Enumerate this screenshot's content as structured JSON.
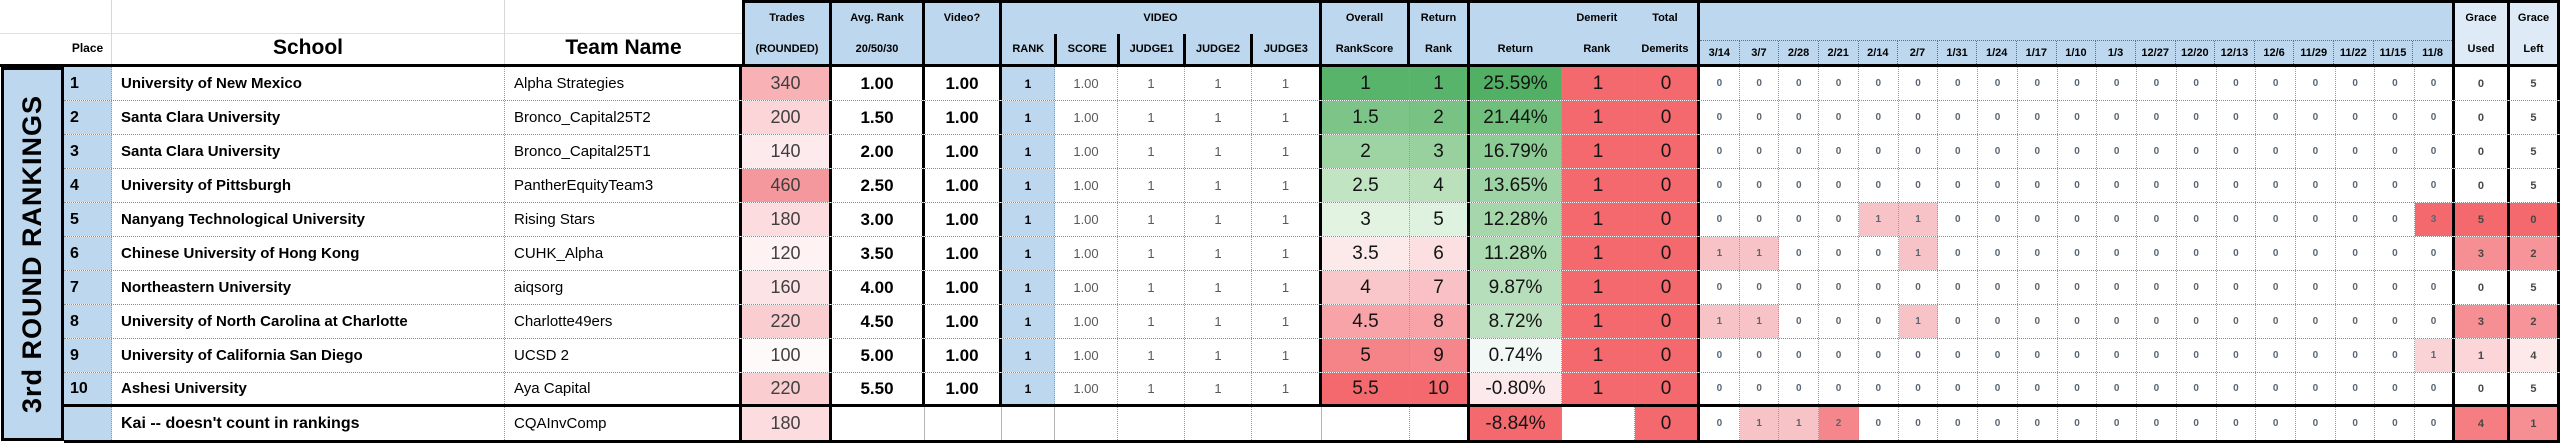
{
  "banner": {
    "title": "3rd ROUND RANKINGS"
  },
  "colors": {
    "header_blue": "#BDD7EE",
    "grace_header_blue": "#DEEBF7",
    "rank_cell_blue": "#BDD7EE",
    "scale_green": "#59B46B",
    "scale_red": "#F4696D",
    "highlight_pink": "#F8C3C7"
  },
  "header": {
    "place": "Place",
    "school": "School",
    "team_name": "Team Name",
    "trades_top": "Trades",
    "trades_bottom": "(ROUNDED)",
    "avg_rank_top": "Avg. Rank",
    "avg_rank_bottom": "20/50/30",
    "video_q": "Video?",
    "video_group": "VIDEO",
    "video_cols": [
      "RANK",
      "SCORE",
      "JUDGE1",
      "JUDGE2",
      "JUDGE3"
    ],
    "overall_top": "Overall",
    "overall_bottom": "RankScore",
    "return_rank_top": "Return",
    "return_rank_bottom": "Rank",
    "return_label": "Return",
    "demerit_top": "Demerit",
    "demerit_bottom": "Rank",
    "total_top": "Total",
    "total_bottom": "Demerits",
    "dates": [
      "3/14",
      "3/7",
      "2/28",
      "2/21",
      "2/14",
      "2/7",
      "1/31",
      "1/24",
      "1/17",
      "1/10",
      "1/3",
      "12/27",
      "12/20",
      "12/13",
      "12/6",
      "11/29",
      "11/22",
      "11/15",
      "11/8"
    ],
    "grace_used_top": "Grace",
    "grace_used_bottom": "Used",
    "grace_left_top": "Grace",
    "grace_left_bottom": "Left"
  },
  "rows": [
    {
      "place": "1",
      "school": "University of New Mexico",
      "team": "Alpha Strategies",
      "trades": "340",
      "trades_bg": "#F8B1B5",
      "avg_rank": "1.00",
      "video": "1.00",
      "rank": "1",
      "rank_bg": "#BDD7EE",
      "score": "1.00",
      "j1": "1",
      "j2": "1",
      "j3": "1",
      "rankscore": "1",
      "rankscore_bg": "#59B46B",
      "return_rank": "1",
      "return_rank_bg": "#59B46B",
      "ret": "25.59%",
      "ret_bg": "#52B065",
      "demerit_rank": "1",
      "demerit_rank_bg": "#F4696D",
      "total_demerits": "0",
      "total_demerits_bg": "#F4696D",
      "dates": [
        "0",
        "0",
        "0",
        "0",
        "0",
        "0",
        "0",
        "0",
        "0",
        "0",
        "0",
        "0",
        "0",
        "0",
        "0",
        "0",
        "0",
        "0",
        "0"
      ],
      "date_bgs": {},
      "grace_used": "0",
      "grace_used_bg": "",
      "grace_left": "5",
      "grace_left_bg": ""
    },
    {
      "place": "2",
      "school": "Santa Clara University",
      "team": "Bronco_Capital25T2",
      "trades": "200",
      "trades_bg": "#FBD5D8",
      "avg_rank": "1.50",
      "video": "1.00",
      "rank": "1",
      "rank_bg": "#BDD7EE",
      "score": "1.00",
      "j1": "1",
      "j2": "1",
      "j3": "1",
      "rankscore": "1.5",
      "rankscore_bg": "#7CC487",
      "return_rank": "2",
      "return_rank_bg": "#78C283",
      "ret": "21.44%",
      "ret_bg": "#70BF7D",
      "demerit_rank": "1",
      "demerit_rank_bg": "#F4696D",
      "total_demerits": "0",
      "total_demerits_bg": "#F4696D",
      "dates": [
        "0",
        "0",
        "0",
        "0",
        "0",
        "0",
        "0",
        "0",
        "0",
        "0",
        "0",
        "0",
        "0",
        "0",
        "0",
        "0",
        "0",
        "0",
        "0"
      ],
      "date_bgs": {},
      "grace_used": "0",
      "grace_used_bg": "",
      "grace_left": "5",
      "grace_left_bg": ""
    },
    {
      "place": "3",
      "school": "Santa Clara University",
      "team": "Bronco_Capital25T1",
      "trades": "140",
      "trades_bg": "#FDEAEC",
      "avg_rank": "2.00",
      "video": "1.00",
      "rank": "1",
      "rank_bg": "#BDD7EE",
      "score": "1.00",
      "j1": "1",
      "j2": "1",
      "j3": "1",
      "rankscore": "2",
      "rankscore_bg": "#9ED4A3",
      "return_rank": "3",
      "return_rank_bg": "#98D09E",
      "ret": "16.79%",
      "ret_bg": "#8ECC96",
      "demerit_rank": "1",
      "demerit_rank_bg": "#F4696D",
      "total_demerits": "0",
      "total_demerits_bg": "#F4696D",
      "dates": [
        "0",
        "0",
        "0",
        "0",
        "0",
        "0",
        "0",
        "0",
        "0",
        "0",
        "0",
        "0",
        "0",
        "0",
        "0",
        "0",
        "0",
        "0",
        "0"
      ],
      "date_bgs": {},
      "grace_used": "0",
      "grace_used_bg": "",
      "grace_left": "5",
      "grace_left_bg": ""
    },
    {
      "place": "4",
      "school": "University of Pittsburgh",
      "team": "PantherEquityTeam3",
      "trades": "460",
      "trades_bg": "#F5989D",
      "avg_rank": "2.50",
      "video": "1.00",
      "rank": "1",
      "rank_bg": "#BDD7EE",
      "score": "1.00",
      "j1": "1",
      "j2": "1",
      "j3": "1",
      "rankscore": "2.5",
      "rankscore_bg": "#C1E4C2",
      "return_rank": "4",
      "return_rank_bg": "#BBE0BC",
      "ret": "13.65%",
      "ret_bg": "#9ED4A5",
      "demerit_rank": "1",
      "demerit_rank_bg": "#F4696D",
      "total_demerits": "0",
      "total_demerits_bg": "#F4696D",
      "dates": [
        "0",
        "0",
        "0",
        "0",
        "0",
        "0",
        "0",
        "0",
        "0",
        "0",
        "0",
        "0",
        "0",
        "0",
        "0",
        "0",
        "0",
        "0",
        "0"
      ],
      "date_bgs": {},
      "grace_used": "0",
      "grace_used_bg": "",
      "grace_left": "5",
      "grace_left_bg": ""
    },
    {
      "place": "5",
      "school": "Nanyang Technological University",
      "team": "Rising Stars",
      "trades": "180",
      "trades_bg": "#FCDCDF",
      "avg_rank": "3.00",
      "video": "1.00",
      "rank": "1",
      "rank_bg": "#BDD7EE",
      "score": "1.00",
      "j1": "1",
      "j2": "1",
      "j3": "1",
      "rankscore": "3",
      "rankscore_bg": "#E3F3E2",
      "return_rank": "5",
      "return_rank_bg": "#DFF1DF",
      "ret": "12.28%",
      "ret_bg": "#A5D7AB",
      "demerit_rank": "1",
      "demerit_rank_bg": "#F4696D",
      "total_demerits": "0",
      "total_demerits_bg": "#F4696D",
      "dates": [
        "0",
        "0",
        "0",
        "0",
        "1",
        "1",
        "0",
        "0",
        "0",
        "0",
        "0",
        "0",
        "0",
        "0",
        "0",
        "0",
        "0",
        "0",
        "3"
      ],
      "date_bgs": {
        "4": "#F8C3C7",
        "5": "#F8C3C7",
        "18": "#F4696D"
      },
      "grace_used": "5",
      "grace_used_bg": "#F4696D",
      "grace_left": "0",
      "grace_left_bg": "#F4696D"
    },
    {
      "place": "6",
      "school": "Chinese University of Hong Kong",
      "team": "CUHK_Alpha",
      "trades": "120",
      "trades_bg": "#FEF2F3",
      "avg_rank": "3.50",
      "video": "1.00",
      "rank": "1",
      "rank_bg": "#BDD7EE",
      "score": "1.00",
      "j1": "1",
      "j2": "1",
      "j3": "1",
      "rankscore": "3.5",
      "rankscore_bg": "#FCE9EA",
      "return_rank": "6",
      "return_rank_bg": "#FBDFE1",
      "ret": "11.28%",
      "ret_bg": "#ACDAB1",
      "demerit_rank": "1",
      "demerit_rank_bg": "#F4696D",
      "total_demerits": "0",
      "total_demerits_bg": "#F4696D",
      "dates": [
        "1",
        "1",
        "0",
        "0",
        "0",
        "1",
        "0",
        "0",
        "0",
        "0",
        "0",
        "0",
        "0",
        "0",
        "0",
        "0",
        "0",
        "0",
        "0"
      ],
      "date_bgs": {
        "0": "#F8C3C7",
        "1": "#F8C3C7",
        "5": "#F8C3C7"
      },
      "grace_used": "3",
      "grace_used_bg": "#F68F94",
      "grace_left": "2",
      "grace_left_bg": "#F79499"
    },
    {
      "place": "7",
      "school": "Northeastern University",
      "team": "aiqsorg",
      "trades": "160",
      "trades_bg": "#FCE3E5",
      "avg_rank": "4.00",
      "video": "1.00",
      "rank": "1",
      "rank_bg": "#BDD7EE",
      "score": "1.00",
      "j1": "1",
      "j2": "1",
      "j3": "1",
      "rankscore": "4",
      "rankscore_bg": "#F9C6CA",
      "return_rank": "7",
      "return_rank_bg": "#F9C1C5",
      "ret": "9.87%",
      "ret_bg": "#B7DEBB",
      "demerit_rank": "1",
      "demerit_rank_bg": "#F4696D",
      "total_demerits": "0",
      "total_demerits_bg": "#F4696D",
      "dates": [
        "0",
        "0",
        "0",
        "0",
        "0",
        "0",
        "0",
        "0",
        "0",
        "0",
        "0",
        "0",
        "0",
        "0",
        "0",
        "0",
        "0",
        "0",
        "0"
      ],
      "date_bgs": {},
      "grace_used": "0",
      "grace_used_bg": "",
      "grace_left": "5",
      "grace_left_bg": ""
    },
    {
      "place": "8",
      "school": "University of North Carolina at Charlotte",
      "team": "Charlotte49ers",
      "trades": "220",
      "trades_bg": "#FACDD1",
      "avg_rank": "4.50",
      "video": "1.00",
      "rank": "1",
      "rank_bg": "#BDD7EE",
      "score": "1.00",
      "j1": "1",
      "j2": "1",
      "j3": "1",
      "rankscore": "4.5",
      "rankscore_bg": "#F7A3A8",
      "return_rank": "8",
      "return_rank_bg": "#F7A3A8",
      "ret": "8.72%",
      "ret_bg": "#BDE1C1",
      "demerit_rank": "1",
      "demerit_rank_bg": "#F4696D",
      "total_demerits": "0",
      "total_demerits_bg": "#F4696D",
      "dates": [
        "1",
        "1",
        "0",
        "0",
        "0",
        "1",
        "0",
        "0",
        "0",
        "0",
        "0",
        "0",
        "0",
        "0",
        "0",
        "0",
        "0",
        "0",
        "0"
      ],
      "date_bgs": {
        "0": "#F8C3C7",
        "1": "#F8C3C7",
        "5": "#F8C3C7"
      },
      "grace_used": "3",
      "grace_used_bg": "#F68F94",
      "grace_left": "2",
      "grace_left_bg": "#F79499"
    },
    {
      "place": "9",
      "school": "University of California San Diego",
      "team": "UCSD 2",
      "trades": "100",
      "trades_bg": "#FFFAFA",
      "avg_rank": "5.00",
      "video": "1.00",
      "rank": "1",
      "rank_bg": "#BDD7EE",
      "score": "1.00",
      "j1": "1",
      "j2": "1",
      "j3": "1",
      "rankscore": "5",
      "rankscore_bg": "#F58489",
      "return_rank": "9",
      "return_rank_bg": "#F5868B",
      "ret": "0.74%",
      "ret_bg": "#F2F8F5",
      "demerit_rank": "1",
      "demerit_rank_bg": "#F4696D",
      "total_demerits": "0",
      "total_demerits_bg": "#F4696D",
      "dates": [
        "0",
        "0",
        "0",
        "0",
        "0",
        "0",
        "0",
        "0",
        "0",
        "0",
        "0",
        "0",
        "0",
        "0",
        "0",
        "0",
        "0",
        "0",
        "1"
      ],
      "date_bgs": {
        "18": "#FAD3D6"
      },
      "grace_used": "1",
      "grace_used_bg": "#FBD5D8",
      "grace_left": "4",
      "grace_left_bg": "#FDE9EA"
    },
    {
      "place": "10",
      "school": "Ashesi University",
      "team": "Aya Capital",
      "trades": "220",
      "trades_bg": "#FACDD1",
      "avg_rank": "5.50",
      "video": "1.00",
      "rank": "1",
      "rank_bg": "#BDD7EE",
      "score": "1.00",
      "j1": "1",
      "j2": "1",
      "j3": "1",
      "rankscore": "5.5",
      "rankscore_bg": "#F4696D",
      "return_rank": "10",
      "return_rank_bg": "#F4696D",
      "ret": "-0.80%",
      "ret_bg": "#FCE9EB",
      "demerit_rank": "1",
      "demerit_rank_bg": "#F4696D",
      "total_demerits": "0",
      "total_demerits_bg": "#F4696D",
      "dates": [
        "0",
        "0",
        "0",
        "0",
        "0",
        "0",
        "0",
        "0",
        "0",
        "0",
        "0",
        "0",
        "0",
        "0",
        "0",
        "0",
        "0",
        "0",
        "0"
      ],
      "date_bgs": {},
      "grace_used": "0",
      "grace_used_bg": "",
      "grace_left": "5",
      "grace_left_bg": ""
    },
    {
      "place": "",
      "school": "Kai -- doesn't count in rankings",
      "team": "CQAInvComp",
      "trades": "180",
      "trades_bg": "#FCDCDF",
      "avg_rank": "",
      "video": "",
      "rank": "",
      "rank_bg": "",
      "score": "",
      "j1": "",
      "j2": "",
      "j3": "",
      "rankscore": "",
      "rankscore_bg": "",
      "return_rank": "",
      "return_rank_bg": "",
      "ret": "-8.84%",
      "ret_bg": "#F4696D",
      "demerit_rank": "",
      "demerit_rank_bg": "",
      "total_demerits": "0",
      "total_demerits_bg": "#F4696D",
      "dates": [
        "0",
        "1",
        "1",
        "2",
        "0",
        "0",
        "0",
        "0",
        "0",
        "0",
        "0",
        "0",
        "0",
        "0",
        "0",
        "0",
        "0",
        "0",
        "0"
      ],
      "date_bgs": {
        "1": "#F8C3C7",
        "2": "#F8C3C7",
        "3": "#F5878C"
      },
      "grace_used": "4",
      "grace_used_bg": "#F57E83",
      "grace_left": "1",
      "grace_left_bg": "#F68F93",
      "is_kai": true
    }
  ]
}
